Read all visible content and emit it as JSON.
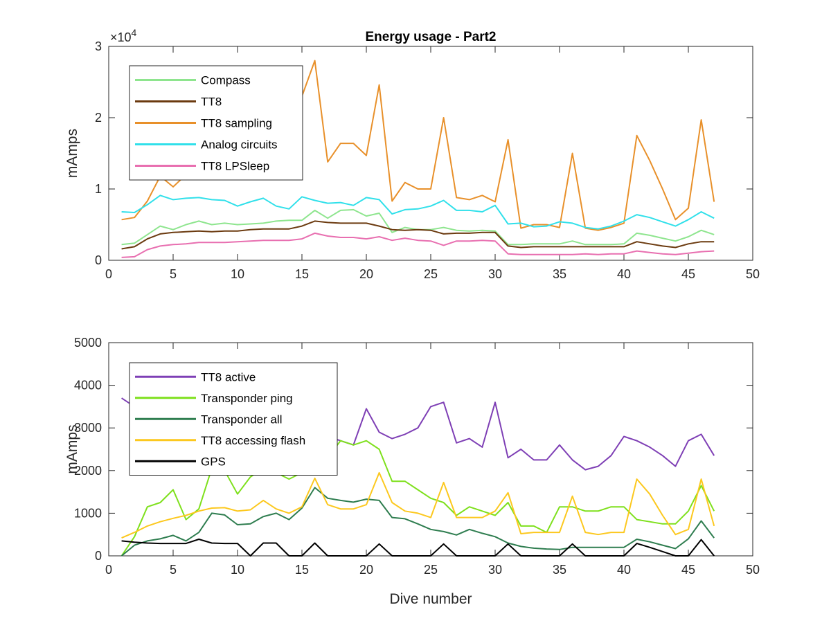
{
  "chart_data": [
    {
      "type": "line",
      "title": "Energy usage - Part2",
      "xlabel": "",
      "ylabel": "mAmps",
      "exponent_label": "×10^4",
      "exponent_base": "×10",
      "exponent_power": "4",
      "xlim": [
        0,
        50
      ],
      "ylim": [
        0,
        30000
      ],
      "xticks": [
        0,
        5,
        10,
        15,
        20,
        25,
        30,
        35,
        40,
        45,
        50
      ],
      "yticks": [
        0,
        10000,
        20000,
        30000
      ],
      "ytick_labels": [
        "0",
        "1",
        "2",
        "3"
      ],
      "grid": false,
      "legend_position": "top-left",
      "x": [
        1,
        2,
        3,
        4,
        5,
        6,
        7,
        8,
        9,
        10,
        11,
        12,
        13,
        14,
        15,
        16,
        17,
        18,
        19,
        20,
        21,
        22,
        23,
        24,
        25,
        26,
        27,
        28,
        29,
        30,
        31,
        32,
        33,
        34,
        35,
        36,
        37,
        38,
        39,
        40,
        41,
        42,
        43,
        44,
        45,
        46,
        47
      ],
      "series": [
        {
          "name": "Compass",
          "color": "#8ee58e",
          "values": [
            2200,
            2400,
            3600,
            4800,
            4300,
            5000,
            5500,
            5000,
            5200,
            5000,
            5100,
            5200,
            5500,
            5600,
            5600,
            7000,
            5900,
            7000,
            7100,
            6200,
            6600,
            3900,
            4600,
            4300,
            4300,
            4600,
            4200,
            4100,
            4200,
            4100,
            2200,
            2200,
            2300,
            2300,
            2300,
            2700,
            2200,
            2200,
            2200,
            2300,
            3800,
            3500,
            3100,
            2700,
            3300,
            4200,
            3600
          ]
        },
        {
          "name": "TT8",
          "color": "#6b3a0f",
          "values": [
            1600,
            1900,
            3000,
            3700,
            3900,
            4000,
            4100,
            4000,
            4100,
            4100,
            4300,
            4400,
            4400,
            4400,
            4800,
            5500,
            5300,
            5200,
            5200,
            5200,
            4800,
            4300,
            4200,
            4300,
            4200,
            3700,
            3800,
            3800,
            3900,
            3900,
            2000,
            1800,
            1900,
            1900,
            1900,
            1900,
            1900,
            1900,
            1900,
            1900,
            2600,
            2300,
            2000,
            1800,
            2300,
            2600,
            2600
          ]
        },
        {
          "name": "TT8 sampling",
          "color": "#e8902a",
          "values": [
            5700,
            6000,
            8300,
            11800,
            10300,
            12000,
            14000,
            14100,
            14800,
            15300,
            11800,
            12000,
            14000,
            17000,
            23000,
            28000,
            13800,
            16400,
            16400,
            14700,
            24600,
            8300,
            10900,
            10000,
            10000,
            20000,
            8800,
            8500,
            9100,
            8200,
            16900,
            4500,
            5000,
            5000,
            4600,
            15000,
            4500,
            4200,
            4600,
            5200,
            17500,
            14000,
            10000,
            5700,
            7300,
            19700,
            8200
          ]
        },
        {
          "name": "Analog circuits",
          "color": "#30e0ea",
          "values": [
            6800,
            6700,
            7800,
            9100,
            8500,
            8700,
            8800,
            8500,
            8400,
            7600,
            8200,
            8700,
            7600,
            7200,
            8900,
            8400,
            8000,
            8100,
            7700,
            8800,
            8500,
            6500,
            7100,
            7200,
            7600,
            8400,
            7000,
            7000,
            6800,
            7700,
            5100,
            5200,
            4700,
            4800,
            5400,
            5200,
            4600,
            4400,
            4800,
            5500,
            6400,
            6000,
            5400,
            4800,
            5700,
            6800,
            5900
          ]
        },
        {
          "name": "TT8 LPSleep",
          "color": "#e86fb0",
          "values": [
            400,
            500,
            1500,
            2000,
            2200,
            2300,
            2500,
            2500,
            2500,
            2600,
            2700,
            2800,
            2800,
            2800,
            3000,
            3800,
            3400,
            3200,
            3200,
            3000,
            3300,
            2800,
            3100,
            2800,
            2700,
            2100,
            2700,
            2700,
            2800,
            2700,
            900,
            800,
            800,
            800,
            800,
            800,
            900,
            800,
            900,
            900,
            1300,
            1100,
            900,
            800,
            1000,
            1200,
            1300
          ]
        }
      ]
    },
    {
      "type": "line",
      "title": "",
      "xlabel": "Dive number",
      "ylabel": "mAmps",
      "xlim": [
        0,
        50
      ],
      "ylim": [
        0,
        5000
      ],
      "xticks": [
        0,
        5,
        10,
        15,
        20,
        25,
        30,
        35,
        40,
        45,
        50
      ],
      "yticks": [
        0,
        1000,
        2000,
        3000,
        4000,
        5000
      ],
      "ytick_labels": [
        "0",
        "1000",
        "2000",
        "3000",
        "4000",
        "5000"
      ],
      "grid": false,
      "legend_position": "top-left",
      "x": [
        1,
        2,
        3,
        4,
        5,
        6,
        7,
        8,
        9,
        10,
        11,
        12,
        13,
        14,
        15,
        16,
        17,
        18,
        19,
        20,
        21,
        22,
        23,
        24,
        25,
        26,
        27,
        28,
        29,
        30,
        31,
        32,
        33,
        34,
        35,
        36,
        37,
        38,
        39,
        40,
        41,
        42,
        43,
        44,
        45,
        46,
        47
      ],
      "series": [
        {
          "name": "TT8 active",
          "color": "#7e3fb5",
          "values": [
            3700,
            3500,
            3200,
            3100,
            3000,
            3100,
            3200,
            3100,
            3000,
            3000,
            3000,
            3100,
            3000,
            2900,
            2900,
            2900,
            2800,
            2700,
            2600,
            3450,
            2900,
            2750,
            2850,
            3000,
            3500,
            3600,
            2650,
            2750,
            2550,
            3600,
            2300,
            2500,
            2250,
            2250,
            2600,
            2250,
            2020,
            2100,
            2350,
            2800,
            2700,
            2550,
            2350,
            2100,
            2700,
            2850,
            2350
          ]
        },
        {
          "name": "Transponder ping",
          "color": "#7ee01c",
          "values": [
            0,
            450,
            1150,
            1250,
            1550,
            850,
            1100,
            2050,
            2000,
            1450,
            1850,
            2050,
            1950,
            1800,
            1950,
            2050,
            2300,
            2700,
            2600,
            2700,
            2500,
            1750,
            1750,
            1550,
            1350,
            1250,
            950,
            1150,
            1050,
            950,
            1250,
            700,
            700,
            550,
            1150,
            1150,
            1050,
            1050,
            1150,
            1150,
            850,
            800,
            750,
            750,
            1050,
            1650,
            1050
          ]
        },
        {
          "name": "Transponder all",
          "color": "#2e7d4f",
          "values": [
            0,
            250,
            350,
            400,
            480,
            350,
            550,
            1000,
            960,
            730,
            750,
            920,
            1000,
            850,
            1120,
            1600,
            1350,
            1300,
            1260,
            1330,
            1300,
            900,
            870,
            750,
            620,
            570,
            490,
            620,
            530,
            450,
            300,
            220,
            180,
            160,
            150,
            200,
            200,
            200,
            200,
            200,
            390,
            330,
            250,
            170,
            400,
            820,
            420
          ]
        },
        {
          "name": "TT8 accessing flash",
          "color": "#fcc81e",
          "values": [
            420,
            550,
            700,
            800,
            880,
            950,
            1050,
            1120,
            1130,
            1050,
            1080,
            1300,
            1100,
            1000,
            1150,
            1820,
            1200,
            1100,
            1100,
            1200,
            1950,
            1250,
            1050,
            1000,
            900,
            1720,
            900,
            900,
            900,
            1050,
            1480,
            520,
            550,
            550,
            550,
            1400,
            550,
            500,
            550,
            550,
            1800,
            1450,
            950,
            500,
            620,
            1800,
            700
          ]
        },
        {
          "name": "GPS",
          "color": "#000000",
          "values": [
            350,
            320,
            300,
            290,
            290,
            290,
            390,
            300,
            290,
            290,
            0,
            300,
            300,
            0,
            0,
            300,
            0,
            0,
            0,
            0,
            280,
            0,
            0,
            0,
            0,
            280,
            0,
            0,
            0,
            0,
            280,
            0,
            0,
            0,
            0,
            280,
            0,
            0,
            0,
            0,
            290,
            200,
            100,
            0,
            0,
            380,
            0
          ]
        }
      ]
    }
  ]
}
